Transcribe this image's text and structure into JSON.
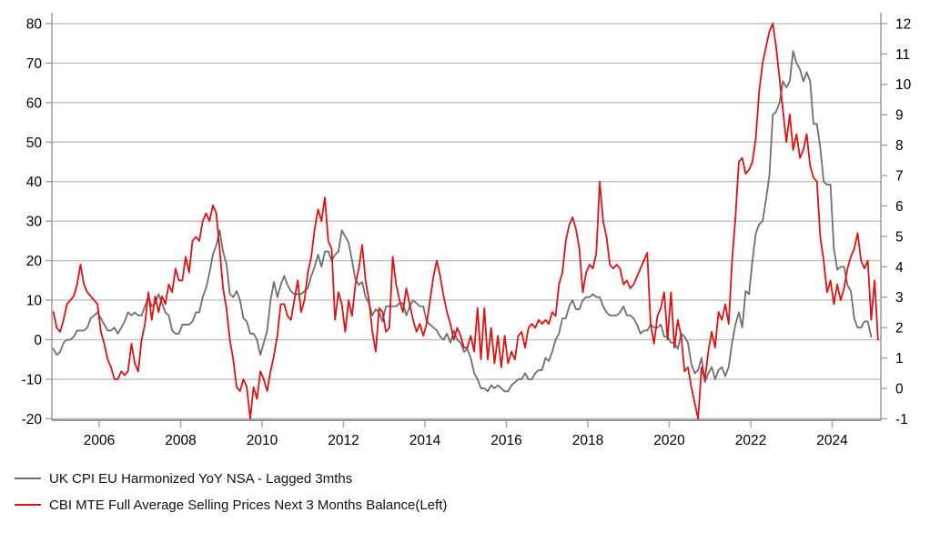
{
  "chart_data": {
    "type": "line",
    "title": "",
    "grid": "horizontal-only",
    "legend_position": "below-left",
    "background": "#ffffff",
    "colors": {
      "gridline": "#b9b9b9",
      "spine": "#9b9b9b",
      "bottom_axis": "#8a8a8a",
      "tick_text": "#000000"
    },
    "x_axis": {
      "tick_labels": [
        "2006",
        "2008",
        "2010",
        "2012",
        "2014",
        "2016",
        "2018",
        "2020",
        "2022",
        "2024"
      ],
      "tick_years": [
        2006,
        2008,
        2010,
        2012,
        2014,
        2016,
        2018,
        2020,
        2022,
        2024
      ],
      "range_start_decimal_year": 2004.84,
      "range_end_decimal_year": 2025.21
    },
    "left_axis": {
      "ticks": [
        80,
        70,
        60,
        50,
        40,
        30,
        20,
        10,
        0,
        -10,
        -20
      ],
      "range": [
        -20,
        80
      ]
    },
    "right_axis": {
      "ticks": [
        12,
        11,
        10,
        9,
        8,
        7,
        6,
        5,
        4,
        3,
        2,
        1,
        0,
        -1
      ],
      "range": [
        -1,
        12
      ]
    },
    "series": [
      {
        "name": "UK CPI EU Harmonized YoY NSA - Lagged 3mths",
        "axis": "right",
        "color": "#6f6f6f",
        "start_year": 2004,
        "start_month": 11,
        "freq": "monthly",
        "values": [
          1.3,
          1.1,
          1.2,
          1.5,
          1.6,
          1.6,
          1.7,
          1.9,
          1.9,
          1.9,
          2.0,
          2.3,
          2.4,
          2.5,
          2.3,
          2.1,
          1.9,
          1.9,
          2.0,
          1.8,
          2.0,
          2.2,
          2.5,
          2.4,
          2.5,
          2.4,
          2.4,
          2.7,
          3.0,
          2.7,
          2.8,
          3.1,
          2.8,
          2.5,
          2.4,
          1.9,
          1.8,
          1.8,
          2.1,
          2.1,
          2.1,
          2.2,
          2.5,
          2.5,
          3.0,
          3.3,
          3.8,
          4.4,
          4.7,
          5.2,
          4.5,
          4.1,
          3.1,
          3.0,
          3.2,
          2.9,
          2.3,
          2.2,
          1.8,
          1.8,
          1.6,
          1.1,
          1.5,
          1.9,
          2.9,
          3.5,
          3.0,
          3.4,
          3.7,
          3.4,
          3.2,
          3.1,
          3.1,
          3.1,
          3.2,
          3.3,
          3.7,
          4.0,
          4.4,
          4.0,
          4.5,
          4.5,
          4.2,
          4.4,
          4.5,
          5.2,
          5.0,
          4.8,
          4.2,
          3.6,
          3.4,
          3.5,
          3.0,
          2.8,
          2.4,
          2.6,
          2.5,
          2.2,
          2.7,
          2.7,
          2.7,
          2.7,
          2.8,
          2.8,
          2.4,
          2.7,
          2.9,
          2.8,
          2.7,
          2.7,
          2.2,
          2.1,
          2.0,
          1.9,
          1.7,
          1.6,
          1.8,
          1.5,
          1.9,
          1.6,
          1.5,
          1.2,
          1.3,
          1.0,
          0.5,
          0.3,
          0.0,
          0.0,
          -0.1,
          0.1,
          0.0,
          0.1,
          0.0,
          -0.1,
          -0.1,
          0.1,
          0.2,
          0.3,
          0.3,
          0.5,
          0.3,
          0.3,
          0.5,
          0.6,
          0.6,
          1.0,
          0.9,
          1.2,
          1.6,
          1.8,
          2.3,
          2.3,
          2.7,
          2.9,
          2.6,
          2.6,
          2.9,
          3.0,
          3.0,
          3.1,
          3.0,
          3.0,
          2.7,
          2.5,
          2.4,
          2.4,
          2.4,
          2.5,
          2.7,
          2.4,
          2.4,
          2.3,
          2.1,
          1.8,
          1.9,
          1.9,
          2.1,
          2.0,
          2.0,
          2.1,
          1.7,
          1.7,
          1.5,
          1.5,
          1.3,
          1.8,
          1.7,
          1.5,
          0.8,
          0.5,
          0.6,
          1.0,
          0.2,
          0.5,
          0.7,
          0.3,
          0.6,
          0.7,
          0.4,
          0.7,
          1.5,
          2.1,
          2.5,
          2.0,
          3.2,
          3.1,
          4.2,
          5.1,
          5.4,
          5.5,
          6.2,
          7.0,
          9.0,
          9.1,
          9.4,
          10.1,
          9.9,
          10.1,
          11.1,
          10.7,
          10.5,
          10.1,
          10.4,
          10.1,
          8.7,
          8.7,
          7.9,
          6.8,
          6.7,
          6.7,
          4.6,
          3.9,
          4.0,
          4.0,
          3.4,
          3.2,
          2.3,
          2.0,
          2.0,
          2.2,
          2.2,
          1.7
        ]
      },
      {
        "name": "CBI MTE Full Average Selling Prices Next 3 Months Balance(Left)",
        "axis": "left",
        "color": "#df1111",
        "start_year": 2004,
        "start_month": 11,
        "freq": "monthly",
        "values": [
          7,
          3,
          2,
          5,
          9,
          10,
          11,
          14,
          19,
          14,
          12,
          11,
          10,
          9,
          2,
          -1,
          -5,
          -7,
          -10,
          -10,
          -8,
          -9,
          -8,
          -1,
          -6,
          -8,
          0,
          4,
          12,
          5,
          11,
          7,
          11,
          9,
          14,
          12,
          18,
          15,
          15,
          21,
          17,
          25,
          26,
          25,
          30,
          32,
          30,
          34,
          32,
          23,
          13,
          8,
          0,
          -5,
          -12,
          -13,
          -10,
          -12,
          -20,
          -12,
          -15,
          -8,
          -10,
          -13,
          -8,
          -4,
          1,
          9,
          9,
          6,
          5,
          10,
          15,
          7,
          10,
          17,
          21,
          28,
          33,
          30,
          36,
          25,
          23,
          5,
          12,
          9,
          2,
          10,
          6,
          14,
          18,
          24,
          15,
          10,
          2,
          -3,
          8,
          7,
          2,
          3,
          21,
          14,
          10,
          7,
          13,
          9,
          5,
          2,
          4,
          1,
          4,
          10,
          16,
          20,
          16,
          11,
          7,
          4,
          0,
          3,
          1,
          -2,
          -2,
          1,
          -3,
          8,
          -5,
          8,
          -5,
          3,
          -6,
          1,
          -7,
          1,
          -6,
          -3,
          -5,
          1,
          2,
          -2,
          3,
          4,
          3,
          5,
          4,
          5,
          4,
          7,
          6,
          14,
          17,
          25,
          29,
          31,
          28,
          23,
          12,
          17,
          19,
          18,
          22,
          40,
          30,
          26,
          19,
          18,
          19,
          18,
          14,
          15,
          13,
          14,
          16,
          18,
          20,
          22,
          4,
          -1,
          6,
          8,
          12,
          0,
          12,
          -2,
          5,
          1,
          -8,
          -7,
          -12,
          -16,
          -20,
          -7,
          -10,
          -3,
          2,
          -2,
          7,
          5,
          9,
          4,
          20,
          31,
          45,
          46,
          42,
          43,
          45,
          51,
          63,
          70,
          74,
          78,
          80,
          74,
          66,
          58,
          50,
          57,
          48,
          52,
          46,
          48,
          52,
          44,
          41,
          40,
          26,
          20,
          12,
          15,
          9,
          14,
          10,
          13,
          18,
          21,
          23,
          27,
          20,
          18,
          20,
          5,
          15,
          0
        ]
      }
    ]
  },
  "legend": {
    "items": [
      {
        "label": "UK CPI EU Harmonized YoY NSA - Lagged 3mths",
        "color": "#6f6f6f"
      },
      {
        "label": "CBI MTE Full Average Selling Prices Next 3 Months Balance(Left)",
        "color": "#df1111"
      }
    ]
  }
}
